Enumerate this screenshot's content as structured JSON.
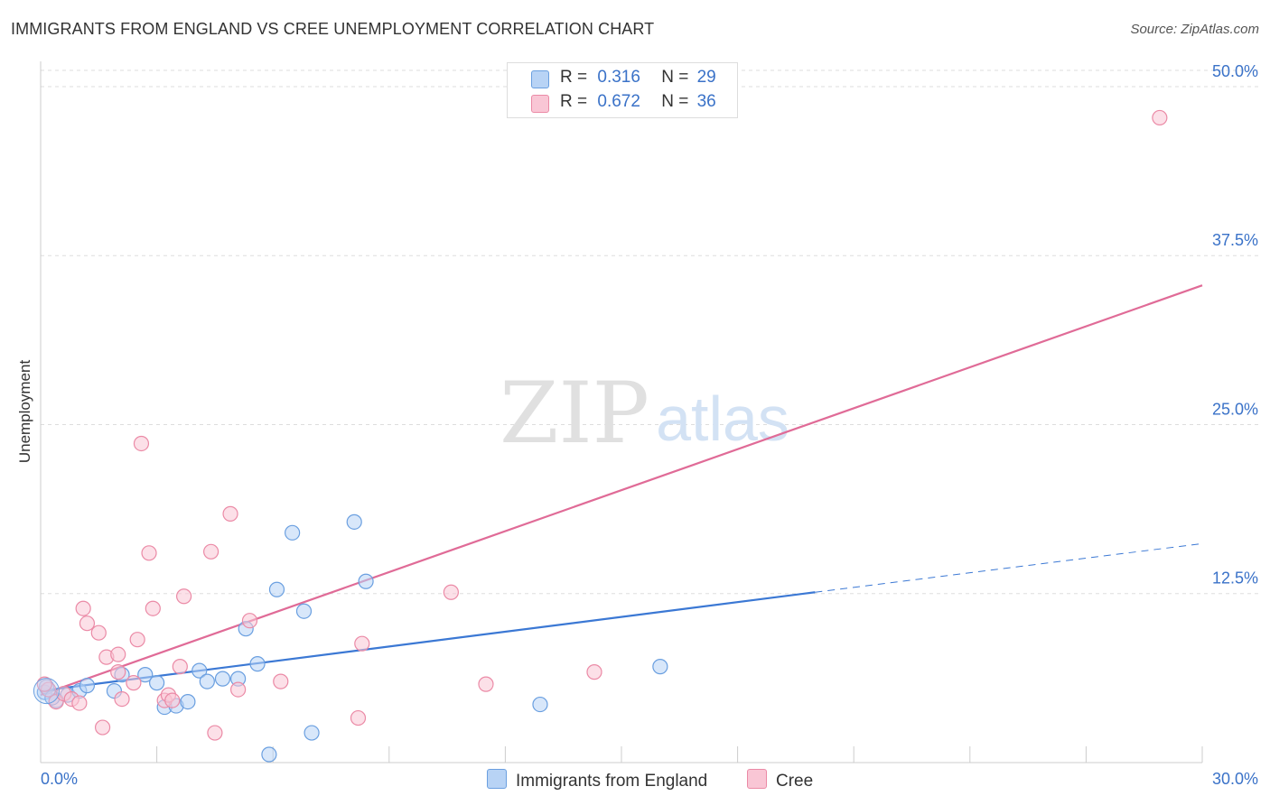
{
  "title": "IMMIGRANTS FROM ENGLAND VS CREE UNEMPLOYMENT CORRELATION CHART",
  "source": "Source: ZipAtlas.com",
  "watermark": {
    "zip": "ZIP",
    "atlas": "atlas"
  },
  "legend": {
    "rows": [
      {
        "r_label": "R =",
        "r_value": "0.316",
        "n_label": "N =",
        "n_value": "29"
      },
      {
        "r_label": "R =",
        "r_value": "0.672",
        "n_label": "N =",
        "n_value": "36"
      }
    ]
  },
  "colors": {
    "england_fill": "#b8d3f5",
    "england_stroke": "#6a9fe0",
    "england_line": "#3b78d4",
    "cree_fill": "#f9c6d5",
    "cree_stroke": "#eb8aa6",
    "cree_line": "#e06b97",
    "axis_text": "#3a72c8",
    "grid": "#dddddd"
  },
  "chart_data": {
    "type": "scatter",
    "title": "IMMIGRANTS FROM ENGLAND VS CREE UNEMPLOYMENT CORRELATION CHART",
    "xlabel": "",
    "ylabel": "Unemployment",
    "xlim": [
      0,
      30
    ],
    "ylim": [
      0,
      51
    ],
    "x_tick_labels": [
      "0.0%",
      "30.0%"
    ],
    "y_ticks": [
      12.5,
      25.0,
      37.5,
      50.0
    ],
    "y_tick_labels": [
      "12.5%",
      "25.0%",
      "37.5%",
      "50.0%"
    ],
    "grid": true,
    "legend_position": "top-center",
    "series": [
      {
        "name": "Immigrants from England",
        "r": 0.316,
        "n": 29,
        "points": [
          [
            0.1,
            5.2
          ],
          [
            0.4,
            4.6
          ],
          [
            0.7,
            5.0
          ],
          [
            1.0,
            5.3
          ],
          [
            1.2,
            5.7
          ],
          [
            1.9,
            5.3
          ],
          [
            2.1,
            6.5
          ],
          [
            2.7,
            6.5
          ],
          [
            3.0,
            5.9
          ],
          [
            3.2,
            4.1
          ],
          [
            3.5,
            4.2
          ],
          [
            3.8,
            4.5
          ],
          [
            4.1,
            6.8
          ],
          [
            4.3,
            6.0
          ],
          [
            4.7,
            6.2
          ],
          [
            5.1,
            6.2
          ],
          [
            5.3,
            9.9
          ],
          [
            5.6,
            7.3
          ],
          [
            5.9,
            0.6
          ],
          [
            6.1,
            12.8
          ],
          [
            6.5,
            17.0
          ],
          [
            6.8,
            11.2
          ],
          [
            7.0,
            2.2
          ],
          [
            8.1,
            17.8
          ],
          [
            8.4,
            13.4
          ],
          [
            12.9,
            4.3
          ],
          [
            16.0,
            7.1
          ],
          [
            0.15,
            5.6
          ],
          [
            0.3,
            4.8
          ]
        ],
        "trend": {
          "x": [
            0,
            20
          ],
          "y": [
            5.3,
            12.6
          ]
        },
        "trend_extension": {
          "x": [
            20,
            30
          ],
          "y": [
            12.6,
            16.2
          ]
        }
      },
      {
        "name": "Cree",
        "r": 0.672,
        "n": 36,
        "points": [
          [
            0.2,
            5.4
          ],
          [
            0.4,
            4.5
          ],
          [
            0.6,
            5.1
          ],
          [
            0.8,
            4.7
          ],
          [
            1.0,
            4.4
          ],
          [
            1.1,
            11.4
          ],
          [
            1.2,
            10.3
          ],
          [
            1.5,
            9.6
          ],
          [
            1.6,
            2.6
          ],
          [
            1.7,
            7.8
          ],
          [
            2.0,
            6.7
          ],
          [
            2.0,
            8.0
          ],
          [
            2.1,
            4.7
          ],
          [
            2.4,
            5.9
          ],
          [
            2.5,
            9.1
          ],
          [
            2.6,
            23.6
          ],
          [
            2.8,
            15.5
          ],
          [
            2.9,
            11.4
          ],
          [
            3.2,
            4.6
          ],
          [
            3.3,
            5.0
          ],
          [
            3.4,
            4.6
          ],
          [
            3.6,
            7.1
          ],
          [
            3.7,
            12.3
          ],
          [
            4.5,
            2.2
          ],
          [
            4.4,
            15.6
          ],
          [
            4.9,
            18.4
          ],
          [
            5.1,
            5.4
          ],
          [
            5.4,
            10.5
          ],
          [
            6.2,
            6.0
          ],
          [
            8.2,
            3.3
          ],
          [
            8.3,
            8.8
          ],
          [
            10.6,
            12.6
          ],
          [
            11.5,
            5.8
          ],
          [
            14.3,
            6.7
          ],
          [
            28.9,
            47.7
          ],
          [
            0.1,
            5.8
          ]
        ],
        "trend": {
          "x": [
            0,
            30
          ],
          "y": [
            5.0,
            35.3
          ]
        }
      }
    ]
  },
  "bottom_legend": {
    "england": "Immigrants from England",
    "cree": "Cree"
  }
}
